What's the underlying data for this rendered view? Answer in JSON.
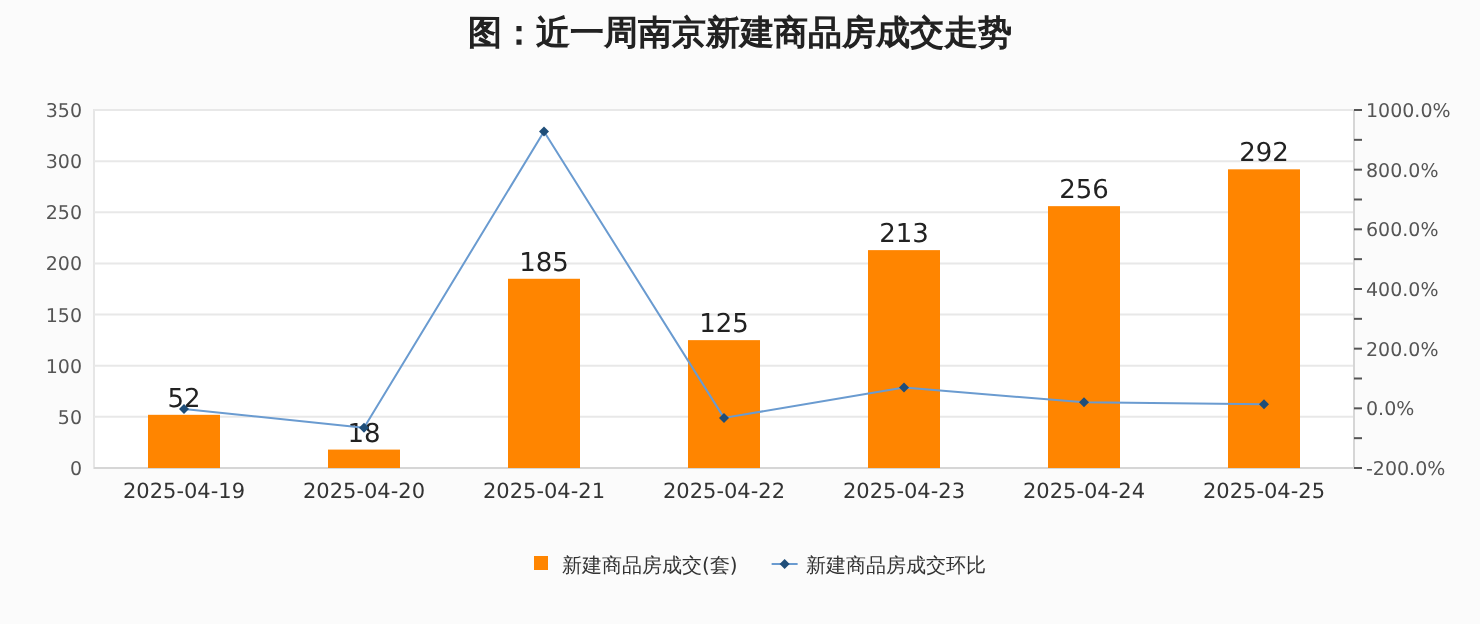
{
  "chart_data": {
    "type": "bar",
    "title": "图：近一周南京新建商品房成交走势",
    "categories": [
      "2025-04-19",
      "2025-04-20",
      "2025-04-21",
      "2025-04-22",
      "2025-04-23",
      "2025-04-24",
      "2025-04-25"
    ],
    "series": [
      {
        "name": "新建商品房成交(套)",
        "color": "#ff8500",
        "values": [
          52,
          18,
          185,
          125,
          213,
          256,
          292
        ],
        "value_labels": [
          "52",
          "18",
          "185",
          "125",
          "213",
          "256",
          "292"
        ]
      },
      {
        "name": "新建商品房成交环比",
        "type": "line",
        "axis": "y2",
        "color": "#6a9bd0",
        "marker": "diamond",
        "values": [
          -2,
          -65,
          928,
          -32,
          70,
          20,
          14
        ]
      }
    ],
    "ylim": [
      0,
      350
    ],
    "yticks": [
      0,
      50,
      100,
      150,
      200,
      250,
      300,
      350
    ],
    "y2lim": [
      -200,
      1000
    ],
    "y2ticks": [
      {
        "value": -200,
        "label": "-200.0%"
      },
      {
        "value": -100,
        "label": null
      },
      {
        "value": 0,
        "label": "0.0%"
      },
      {
        "value": 100,
        "label": null
      },
      {
        "value": 200,
        "label": "200.0%"
      },
      {
        "value": 300,
        "label": null
      },
      {
        "value": 400,
        "label": "400.0%"
      },
      {
        "value": 500,
        "label": null
      },
      {
        "value": 600,
        "label": "600.0%"
      },
      {
        "value": 700,
        "label": null
      },
      {
        "value": 800,
        "label": "800.0%"
      },
      {
        "value": 900,
        "label": null
      },
      {
        "value": 1000,
        "label": "1000.0%"
      }
    ],
    "grid": "y",
    "legend": "bottom"
  }
}
